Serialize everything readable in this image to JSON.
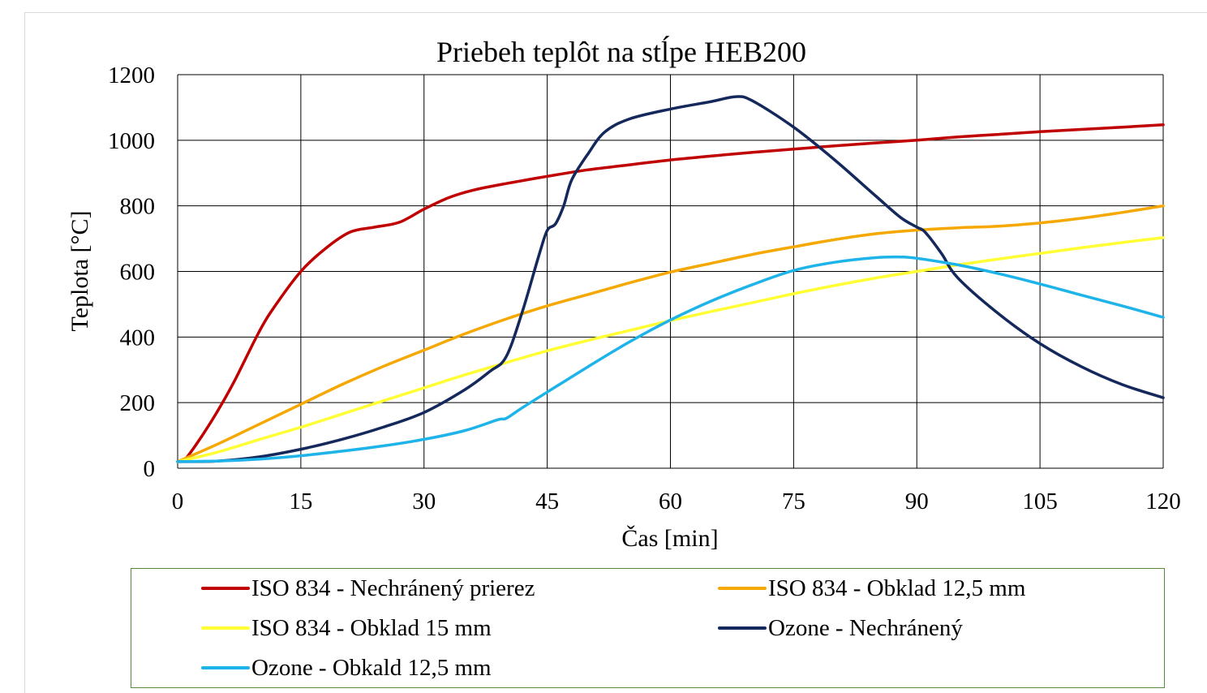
{
  "chart_data": {
    "type": "line",
    "title": "Priebeh teplôt na stĺpe HEB200",
    "xlabel": "Čas [min]",
    "ylabel": "Teplota [°C]",
    "xlim": [
      0,
      120
    ],
    "ylim": [
      0,
      1200
    ],
    "xticks": [
      0,
      15,
      30,
      45,
      60,
      75,
      90,
      105,
      120
    ],
    "yticks": [
      0,
      200,
      400,
      600,
      800,
      1000,
      1200
    ],
    "grid": true,
    "legend_position": "bottom",
    "series": [
      {
        "name": "ISO 834 - Nechránený prierez",
        "color": "#c00000",
        "points": [
          [
            0,
            20
          ],
          [
            1,
            30
          ],
          [
            3,
            100
          ],
          [
            5,
            180
          ],
          [
            7,
            270
          ],
          [
            10,
            420
          ],
          [
            12,
            500
          ],
          [
            15,
            600
          ],
          [
            18,
            670
          ],
          [
            21,
            720
          ],
          [
            24,
            735
          ],
          [
            27,
            750
          ],
          [
            30,
            790
          ],
          [
            33,
            825
          ],
          [
            36,
            848
          ],
          [
            40,
            868
          ],
          [
            45,
            890
          ],
          [
            50,
            910
          ],
          [
            55,
            925
          ],
          [
            60,
            940
          ],
          [
            65,
            952
          ],
          [
            70,
            963
          ],
          [
            75,
            973
          ],
          [
            80,
            983
          ],
          [
            85,
            992
          ],
          [
            90,
            1000
          ],
          [
            95,
            1010
          ],
          [
            100,
            1018
          ],
          [
            105,
            1026
          ],
          [
            110,
            1033
          ],
          [
            115,
            1040
          ],
          [
            120,
            1047
          ]
        ]
      },
      {
        "name": "ISO 834 - Obklad 12,5 mm",
        "color": "#f5a800",
        "points": [
          [
            0,
            20
          ],
          [
            5,
            75
          ],
          [
            10,
            135
          ],
          [
            15,
            195
          ],
          [
            20,
            255
          ],
          [
            25,
            310
          ],
          [
            30,
            360
          ],
          [
            35,
            410
          ],
          [
            40,
            455
          ],
          [
            45,
            495
          ],
          [
            50,
            530
          ],
          [
            55,
            565
          ],
          [
            60,
            598
          ],
          [
            65,
            625
          ],
          [
            70,
            652
          ],
          [
            75,
            675
          ],
          [
            80,
            697
          ],
          [
            85,
            715
          ],
          [
            90,
            726
          ],
          [
            95,
            733
          ],
          [
            100,
            738
          ],
          [
            105,
            748
          ],
          [
            110,
            762
          ],
          [
            115,
            780
          ],
          [
            120,
            800
          ]
        ]
      },
      {
        "name": "ISO 834 - Obklad 15 mm",
        "color": "#ffff33",
        "points": [
          [
            0,
            20
          ],
          [
            5,
            50
          ],
          [
            10,
            88
          ],
          [
            15,
            125
          ],
          [
            20,
            165
          ],
          [
            25,
            205
          ],
          [
            30,
            245
          ],
          [
            35,
            285
          ],
          [
            40,
            322
          ],
          [
            45,
            358
          ],
          [
            50,
            390
          ],
          [
            55,
            420
          ],
          [
            60,
            450
          ],
          [
            65,
            478
          ],
          [
            70,
            505
          ],
          [
            75,
            532
          ],
          [
            80,
            557
          ],
          [
            85,
            580
          ],
          [
            90,
            600
          ],
          [
            95,
            620
          ],
          [
            100,
            638
          ],
          [
            105,
            655
          ],
          [
            110,
            672
          ],
          [
            115,
            688
          ],
          [
            120,
            703
          ]
        ]
      },
      {
        "name": "Ozone - Nechránený",
        "color": "#14285c",
        "points": [
          [
            0,
            20
          ],
          [
            5,
            22
          ],
          [
            10,
            35
          ],
          [
            15,
            58
          ],
          [
            20,
            88
          ],
          [
            25,
            125
          ],
          [
            30,
            170
          ],
          [
            35,
            240
          ],
          [
            38,
            295
          ],
          [
            40,
            340
          ],
          [
            42,
            480
          ],
          [
            44,
            650
          ],
          [
            45,
            725
          ],
          [
            46,
            745
          ],
          [
            47,
            800
          ],
          [
            48,
            880
          ],
          [
            50,
            960
          ],
          [
            52,
            1025
          ],
          [
            55,
            1065
          ],
          [
            60,
            1095
          ],
          [
            65,
            1118
          ],
          [
            68,
            1133
          ],
          [
            70,
            1120
          ],
          [
            75,
            1040
          ],
          [
            80,
            940
          ],
          [
            85,
            830
          ],
          [
            88,
            765
          ],
          [
            90,
            735
          ],
          [
            91,
            720
          ],
          [
            93,
            655
          ],
          [
            95,
            580
          ],
          [
            100,
            470
          ],
          [
            105,
            380
          ],
          [
            110,
            310
          ],
          [
            115,
            255
          ],
          [
            120,
            215
          ]
        ]
      },
      {
        "name": "Ozone - Obkald 12,5 mm",
        "color": "#1eb4ea",
        "points": [
          [
            0,
            20
          ],
          [
            5,
            22
          ],
          [
            10,
            28
          ],
          [
            15,
            38
          ],
          [
            20,
            52
          ],
          [
            25,
            68
          ],
          [
            30,
            88
          ],
          [
            35,
            115
          ],
          [
            39,
            148
          ],
          [
            40,
            152
          ],
          [
            42,
            185
          ],
          [
            45,
            232
          ],
          [
            50,
            310
          ],
          [
            55,
            385
          ],
          [
            60,
            452
          ],
          [
            65,
            510
          ],
          [
            70,
            560
          ],
          [
            75,
            603
          ],
          [
            80,
            628
          ],
          [
            85,
            642
          ],
          [
            88,
            644
          ],
          [
            90,
            640
          ],
          [
            95,
            620
          ],
          [
            100,
            593
          ],
          [
            105,
            562
          ],
          [
            110,
            528
          ],
          [
            115,
            495
          ],
          [
            120,
            460
          ]
        ]
      }
    ]
  }
}
